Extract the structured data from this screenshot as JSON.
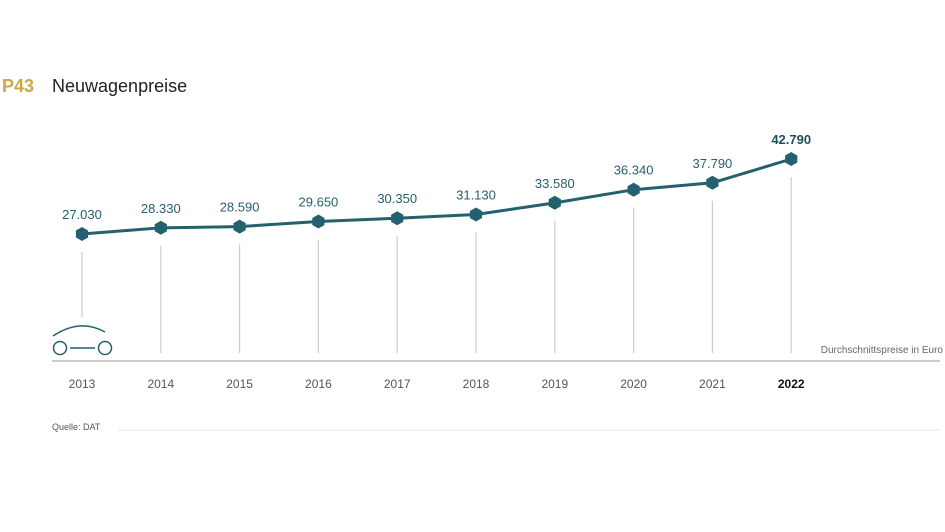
{
  "header": {
    "code": "P43",
    "title": "Neuwagenpreise"
  },
  "chart_data": {
    "type": "line",
    "title": "Neuwagenpreise",
    "categories": [
      "2013",
      "2014",
      "2015",
      "2016",
      "2017",
      "2018",
      "2019",
      "2020",
      "2021",
      "2022"
    ],
    "values": [
      27030,
      28330,
      28590,
      29650,
      30350,
      31130,
      33580,
      36340,
      37790,
      42790
    ],
    "value_labels": [
      "27.030",
      "28.330",
      "28.590",
      "29.650",
      "30.350",
      "31.130",
      "33.580",
      "36.340",
      "37.790",
      "42.790"
    ],
    "ylabel": "Durchschnittspreise in Euro",
    "highlight": "2022",
    "color": "#24606e"
  },
  "footer": {
    "source": "Quelle: DAT"
  }
}
